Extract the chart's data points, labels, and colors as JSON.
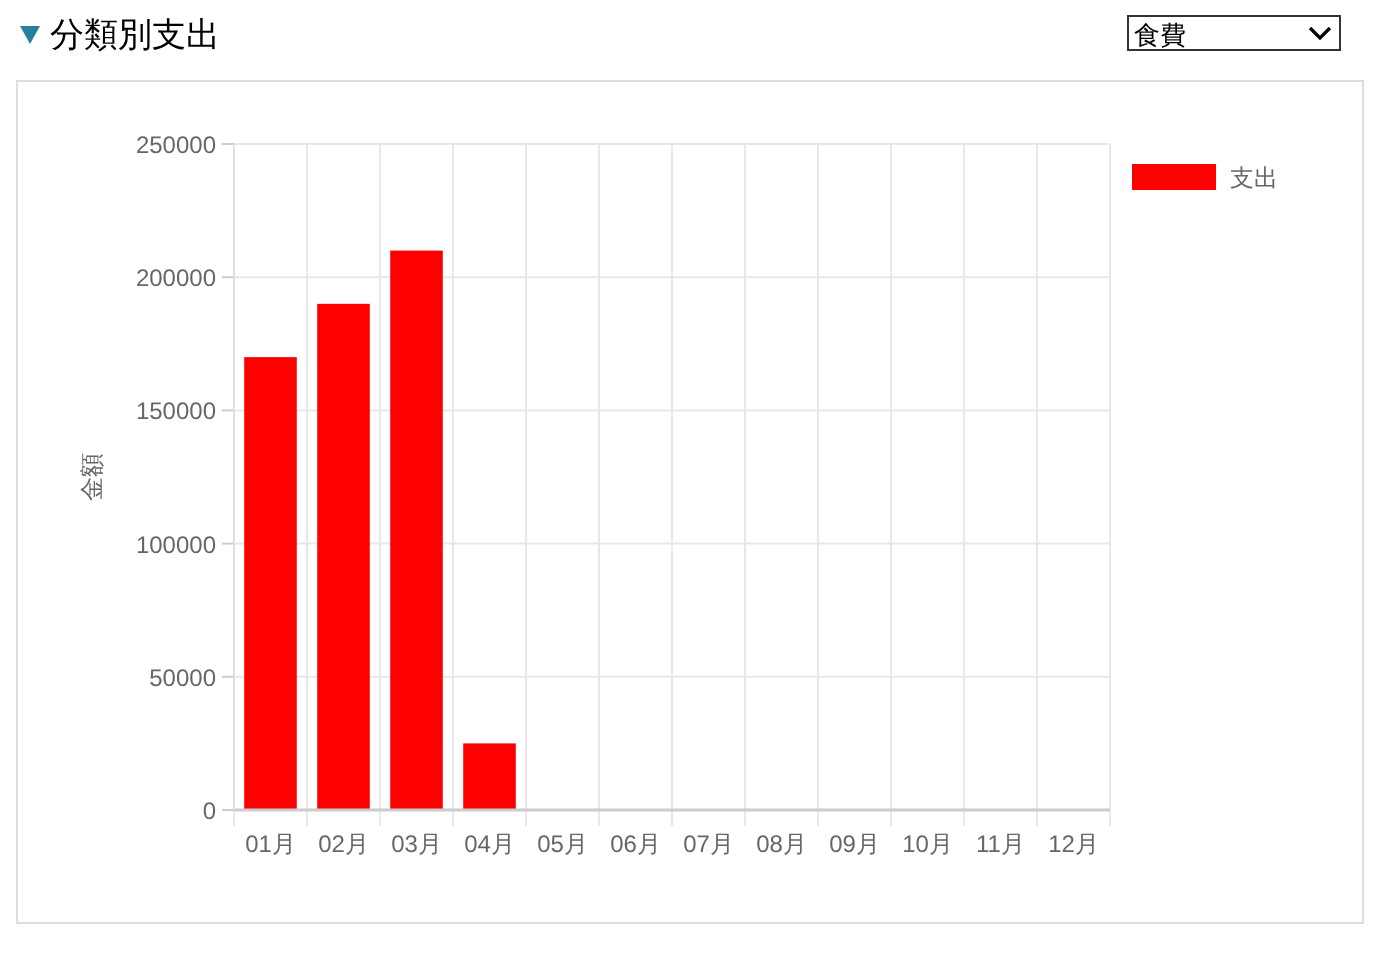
{
  "chart_data": {
    "type": "bar",
    "title": "分類別支出",
    "annotations": [
      "食費"
    ],
    "categories": [
      "01月",
      "02月",
      "03月",
      "04月",
      "05月",
      "06月",
      "07月",
      "08月",
      "09月",
      "10月",
      "11月",
      "12月"
    ],
    "series": [
      {
        "name": "支出",
        "color": "#ff0000",
        "values": [
          170000,
          190000,
          210000,
          25000,
          0,
          0,
          0,
          0,
          0,
          0,
          0,
          0
        ]
      }
    ],
    "ylabel": "金額",
    "ylim": [
      0,
      250000
    ],
    "yticks": [
      0,
      50000,
      100000,
      150000,
      200000,
      250000
    ],
    "grid": true,
    "legend": "top right"
  }
}
